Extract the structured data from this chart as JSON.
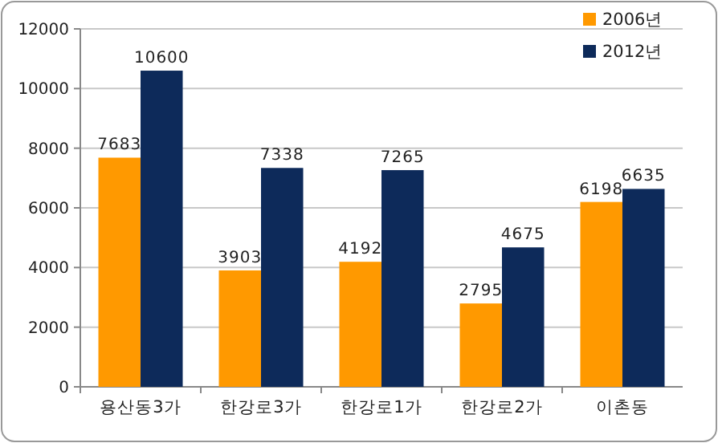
{
  "chart_data": {
    "type": "bar",
    "categories": [
      "용산동3가",
      "한강로3가",
      "한강로1가",
      "한강로2가",
      "이촌동"
    ],
    "series": [
      {
        "name": "2006년",
        "color": "#ff9900",
        "values": [
          7683,
          3903,
          4192,
          2795,
          6198
        ]
      },
      {
        "name": "2012년",
        "color": "#0d2a5a",
        "values": [
          10600,
          7338,
          7265,
          4675,
          6635
        ]
      }
    ],
    "ylim": [
      0,
      12000
    ],
    "yticks": [
      0,
      2000,
      4000,
      6000,
      8000,
      10000,
      12000
    ],
    "grid": "y",
    "legend": "top right",
    "data_labels": true
  }
}
